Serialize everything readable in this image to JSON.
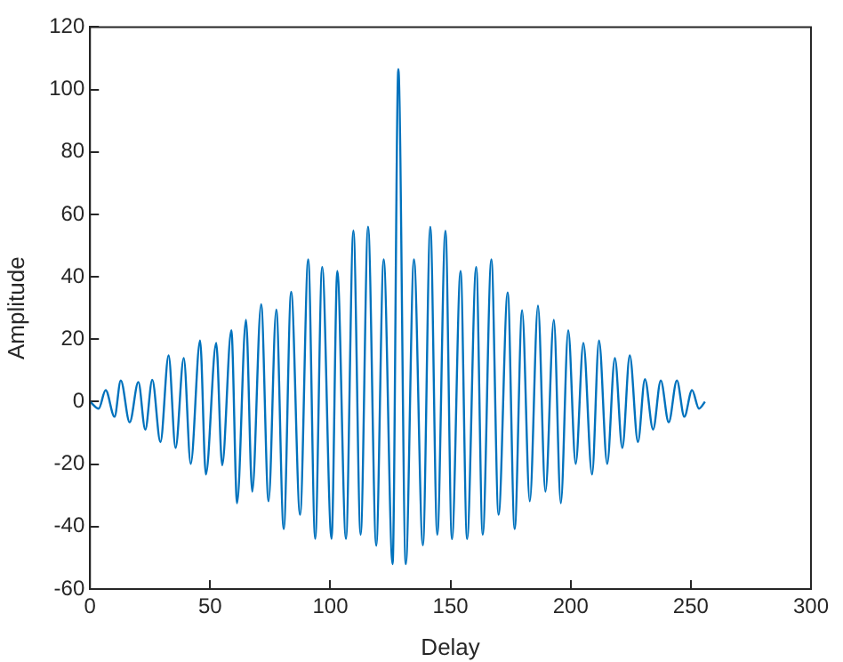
{
  "chart_data": {
    "type": "line",
    "xlabel": "Delay",
    "ylabel": "Amplitude",
    "x": [
      0,
      3.6,
      6.5,
      10.2,
      12.8,
      16.5,
      20.1,
      23,
      25.9,
      29.3,
      32.7,
      35.6,
      39,
      41.9,
      45.8,
      48.2,
      52.5,
      55,
      58.8,
      61.2,
      64.9,
      67.5,
      71.2,
      74.3,
      77.5,
      80.6,
      83.7,
      87.4,
      90.8,
      93.7,
      96.6,
      100.5,
      102.9,
      106.5,
      109.6,
      112.6,
      115.7,
      119.1,
      122.2,
      125.9,
      128.3,
      131.4,
      134.8,
      138.5,
      141.6,
      144.5,
      147.9,
      150.6,
      154.2,
      156.9,
      160.7,
      163.4,
      167,
      170,
      173.8,
      176.7,
      179.8,
      183,
      186.4,
      189.5,
      193,
      195.9,
      199,
      202.1,
      205.3,
      208.9,
      211.8,
      215.2,
      218.4,
      221.5,
      224.6,
      228,
      230.9,
      234.3,
      237.5,
      240.8,
      244.2,
      247.3,
      250.5,
      253.4,
      255.9
    ],
    "series": [
      {
        "color": "#0072bd",
        "values": [
          0,
          -2.2,
          3.7,
          -4.8,
          6.8,
          -6.6,
          6.3,
          -8.9,
          7,
          -12.9,
          14.8,
          -14.8,
          14,
          -19.9,
          19.6,
          -23.3,
          18.8,
          -20.3,
          22.9,
          -32.5,
          26.2,
          -28.8,
          31.2,
          -31.9,
          29.5,
          -40.8,
          35.2,
          -36.2,
          45.6,
          -43.9,
          43.2,
          -43.9,
          41.9,
          -43.9,
          54.8,
          -42.6,
          56.1,
          -46.1,
          45.6,
          -52,
          106.5,
          -52,
          45.6,
          -46,
          56,
          -42.6,
          54.7,
          -44,
          41.9,
          -44,
          43.2,
          -42.6,
          45.6,
          -36.2,
          35,
          -40.8,
          29.3,
          -31.9,
          30.8,
          -28.8,
          26.2,
          -32.5,
          22.9,
          -19.9,
          18.8,
          -23.3,
          19.6,
          -19.9,
          14,
          -14.8,
          14.8,
          -12.9,
          7.2,
          -8.9,
          6.8,
          -6.6,
          6.8,
          -4.8,
          3.7,
          -2.2,
          0
        ]
      }
    ],
    "xlim": [
      0,
      300
    ],
    "xticks": [
      0,
      50,
      100,
      150,
      200,
      250,
      300
    ],
    "ylim": [
      -60,
      120
    ],
    "yticks": [
      -60,
      -40,
      -20,
      0,
      20,
      40,
      60,
      80,
      100,
      120
    ],
    "grid": false,
    "legend": false,
    "marker": "none",
    "line_style": "solid"
  }
}
